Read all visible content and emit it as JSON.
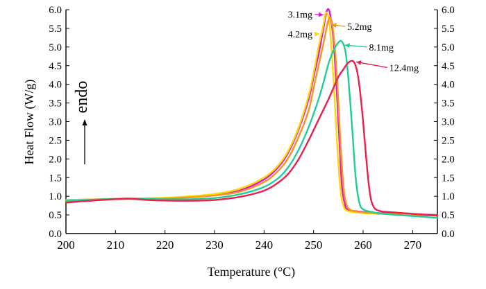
{
  "chart_data": {
    "type": "line",
    "title": "",
    "xlabel": "Temperature (°C)",
    "ylabel": "Heat Flow (W/g)",
    "xlim": [
      200,
      275
    ],
    "ylim": [
      0,
      6
    ],
    "x_ticks": [
      "200",
      "210",
      "220",
      "230",
      "240",
      "250",
      "260",
      "270"
    ],
    "y_ticks_left": [
      "0.0",
      "0.5",
      "1.0",
      "1.5",
      "2.0",
      "2.5",
      "3.0",
      "3.5",
      "4.0",
      "4.5",
      "5.0",
      "5.5",
      "6.0"
    ],
    "y_ticks_right": [
      "0.0",
      "0.5",
      "1.0",
      "1.5",
      "2.0",
      "2.5",
      "3.0",
      "3.5",
      "4.0",
      "4.5",
      "5.0",
      "5.5",
      "6.0"
    ],
    "grid": false,
    "annotation_endo": "endo",
    "series": [
      {
        "name": "3.1mg",
        "color": "#d81ad8",
        "points": [
          [
            200,
            0.9
          ],
          [
            210,
            0.93
          ],
          [
            213,
            0.94
          ],
          [
            220,
            0.95
          ],
          [
            225,
            0.98
          ],
          [
            230,
            1.03
          ],
          [
            235,
            1.15
          ],
          [
            240,
            1.45
          ],
          [
            243,
            1.8
          ],
          [
            245,
            2.2
          ],
          [
            247,
            2.8
          ],
          [
            249,
            3.6
          ],
          [
            250,
            4.2
          ],
          [
            251,
            4.8
          ],
          [
            252,
            5.5
          ],
          [
            252.7,
            5.98
          ],
          [
            253.3,
            5.9
          ],
          [
            254,
            5.2
          ],
          [
            254.6,
            4.0
          ],
          [
            255.2,
            2.5
          ],
          [
            255.7,
            1.3
          ],
          [
            256.3,
            0.8
          ],
          [
            257,
            0.64
          ],
          [
            260,
            0.58
          ],
          [
            265,
            0.54
          ],
          [
            270,
            0.52
          ],
          [
            275,
            0.5
          ]
        ]
      },
      {
        "name": "4.2mg",
        "color": "#ffd800",
        "points": [
          [
            200,
            0.9
          ],
          [
            210,
            0.93
          ],
          [
            213,
            0.94
          ],
          [
            220,
            0.96
          ],
          [
            225,
            1.0
          ],
          [
            230,
            1.06
          ],
          [
            235,
            1.2
          ],
          [
            240,
            1.5
          ],
          [
            243,
            1.85
          ],
          [
            245,
            2.25
          ],
          [
            247,
            2.85
          ],
          [
            249,
            3.7
          ],
          [
            250,
            4.3
          ],
          [
            251,
            5.0
          ],
          [
            252,
            5.6
          ],
          [
            252.4,
            5.9
          ],
          [
            253,
            5.8
          ],
          [
            253.6,
            5.0
          ],
          [
            254.2,
            3.7
          ],
          [
            254.8,
            2.3
          ],
          [
            255.4,
            1.2
          ],
          [
            256,
            0.75
          ],
          [
            257,
            0.6
          ],
          [
            260,
            0.55
          ],
          [
            265,
            0.52
          ],
          [
            270,
            0.5
          ],
          [
            275,
            0.48
          ]
        ]
      },
      {
        "name": "5.2mg",
        "color": "#f7941e",
        "points": [
          [
            200,
            0.88
          ],
          [
            210,
            0.92
          ],
          [
            213,
            0.93
          ],
          [
            220,
            0.94
          ],
          [
            225,
            0.97
          ],
          [
            230,
            1.02
          ],
          [
            235,
            1.12
          ],
          [
            240,
            1.38
          ],
          [
            243,
            1.7
          ],
          [
            245,
            2.05
          ],
          [
            247,
            2.6
          ],
          [
            249,
            3.3
          ],
          [
            250,
            3.9
          ],
          [
            251,
            4.5
          ],
          [
            252,
            5.1
          ],
          [
            253,
            5.72
          ],
          [
            253.6,
            5.72
          ],
          [
            254.2,
            5.1
          ],
          [
            254.8,
            4.0
          ],
          [
            255.4,
            2.5
          ],
          [
            256,
            1.3
          ],
          [
            256.6,
            0.8
          ],
          [
            257.5,
            0.63
          ],
          [
            260,
            0.57
          ],
          [
            265,
            0.53
          ],
          [
            270,
            0.5
          ],
          [
            275,
            0.48
          ]
        ]
      },
      {
        "name": "8.1mg",
        "color": "#22cc99",
        "points": [
          [
            200,
            0.88
          ],
          [
            210,
            0.93
          ],
          [
            213,
            0.94
          ],
          [
            220,
            0.92
          ],
          [
            225,
            0.92
          ],
          [
            230,
            0.95
          ],
          [
            235,
            1.05
          ],
          [
            240,
            1.25
          ],
          [
            243,
            1.5
          ],
          [
            245,
            1.8
          ],
          [
            247,
            2.25
          ],
          [
            249,
            2.85
          ],
          [
            251,
            3.6
          ],
          [
            252,
            4.05
          ],
          [
            253,
            4.55
          ],
          [
            254,
            4.9
          ],
          [
            255,
            5.12
          ],
          [
            255.7,
            5.15
          ],
          [
            256.4,
            4.9
          ],
          [
            257,
            4.2
          ],
          [
            257.8,
            2.8
          ],
          [
            258.5,
            1.5
          ],
          [
            259.2,
            0.85
          ],
          [
            260,
            0.65
          ],
          [
            262,
            0.57
          ],
          [
            265,
            0.52
          ],
          [
            270,
            0.47
          ],
          [
            275,
            0.42
          ]
        ]
      },
      {
        "name": "12.4mg",
        "color": "#e8204a",
        "points": [
          [
            200,
            0.83
          ],
          [
            205,
            0.88
          ],
          [
            210,
            0.92
          ],
          [
            213,
            0.93
          ],
          [
            218,
            0.89
          ],
          [
            225,
            0.88
          ],
          [
            230,
            0.9
          ],
          [
            235,
            0.98
          ],
          [
            240,
            1.15
          ],
          [
            243,
            1.38
          ],
          [
            245,
            1.62
          ],
          [
            247,
            2.0
          ],
          [
            249,
            2.5
          ],
          [
            251,
            3.05
          ],
          [
            253,
            3.6
          ],
          [
            254,
            3.9
          ],
          [
            255,
            4.2
          ],
          [
            256,
            4.4
          ],
          [
            257,
            4.58
          ],
          [
            258,
            4.62
          ],
          [
            258.7,
            4.4
          ],
          [
            259.3,
            3.9
          ],
          [
            260,
            3.0
          ],
          [
            260.7,
            1.9
          ],
          [
            261.4,
            1.05
          ],
          [
            262.2,
            0.7
          ],
          [
            263.5,
            0.6
          ],
          [
            265,
            0.58
          ],
          [
            270,
            0.53
          ],
          [
            275,
            0.48
          ]
        ]
      }
    ],
    "labels": [
      {
        "series_index": 0,
        "text": "3.1mg",
        "label_x": 244.8,
        "label_y": 5.88,
        "target_x": 252.0,
        "target_y": 5.86
      },
      {
        "series_index": 1,
        "text": "4.2mg",
        "label_x": 244.8,
        "label_y": 5.35,
        "target_x": 251.2,
        "target_y": 5.35
      },
      {
        "series_index": 2,
        "text": "5.2mg",
        "label_x": 256.8,
        "label_y": 5.55,
        "target_x": 253.6,
        "target_y": 5.6
      },
      {
        "series_index": 3,
        "text": "8.1mg",
        "label_x": 261.2,
        "label_y": 5.0,
        "target_x": 256.3,
        "target_y": 5.05
      },
      {
        "series_index": 4,
        "text": "12.4mg",
        "label_x": 265.3,
        "label_y": 4.45,
        "target_x": 258.6,
        "target_y": 4.6
      }
    ]
  }
}
